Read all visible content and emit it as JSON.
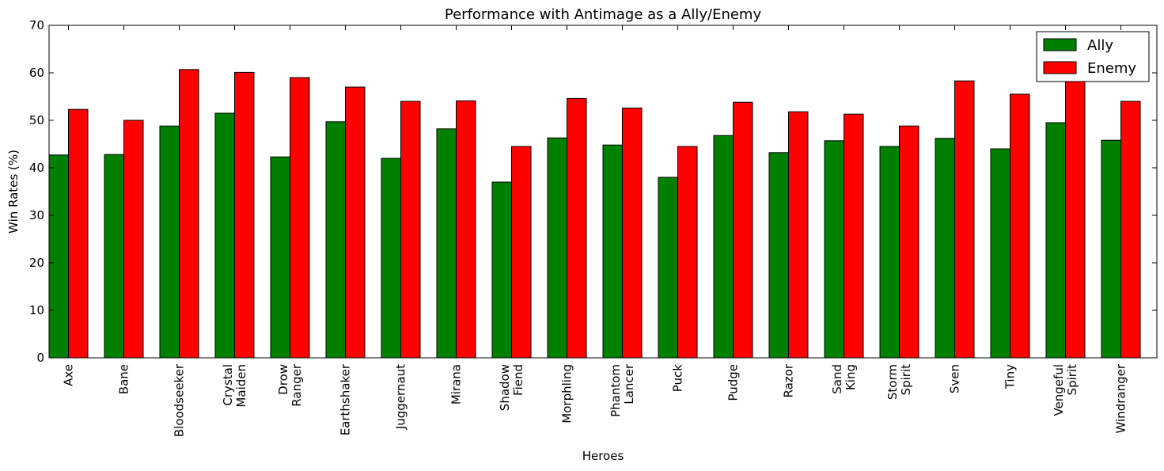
{
  "chart_data": {
    "type": "bar",
    "title": "Performance with Antimage as a Ally/Enemy",
    "xlabel": "Heroes",
    "ylabel": "Win Rates (%)",
    "ylim": [
      0,
      70
    ],
    "yticks": [
      "0",
      "10",
      "20",
      "30",
      "40",
      "50",
      "60",
      "70"
    ],
    "grid": false,
    "legend_position": "top-right",
    "categories": [
      [
        "Axe"
      ],
      [
        "Bane"
      ],
      [
        "Bloodseeker"
      ],
      [
        "Crystal",
        "Maiden"
      ],
      [
        "Drow",
        "Ranger"
      ],
      [
        "Earthshaker"
      ],
      [
        "Juggernaut"
      ],
      [
        "Mirana"
      ],
      [
        "Shadow",
        "Fiend"
      ],
      [
        "Morphling"
      ],
      [
        "Phantom",
        "Lancer"
      ],
      [
        "Puck"
      ],
      [
        "Pudge"
      ],
      [
        "Razor"
      ],
      [
        "Sand",
        "King"
      ],
      [
        "Storm",
        "Spirit"
      ],
      [
        "Sven"
      ],
      [
        "Tiny"
      ],
      [
        "Vengeful",
        "Spirit"
      ],
      [
        "Windranger"
      ]
    ],
    "series": [
      {
        "name": "Ally",
        "color": "#008000",
        "values": [
          42.7,
          42.8,
          48.8,
          51.5,
          42.3,
          49.7,
          42.0,
          48.2,
          37.0,
          46.3,
          44.8,
          38.0,
          46.8,
          43.2,
          45.7,
          44.5,
          46.2,
          44.0,
          49.5,
          45.8
        ]
      },
      {
        "name": "Enemy",
        "color": "#ff0000",
        "values": [
          52.3,
          50.0,
          60.7,
          60.1,
          59.0,
          57.0,
          54.0,
          54.1,
          44.5,
          54.6,
          52.6,
          44.5,
          53.8,
          51.8,
          51.3,
          48.8,
          58.3,
          55.5,
          58.3,
          54.0
        ]
      }
    ]
  }
}
